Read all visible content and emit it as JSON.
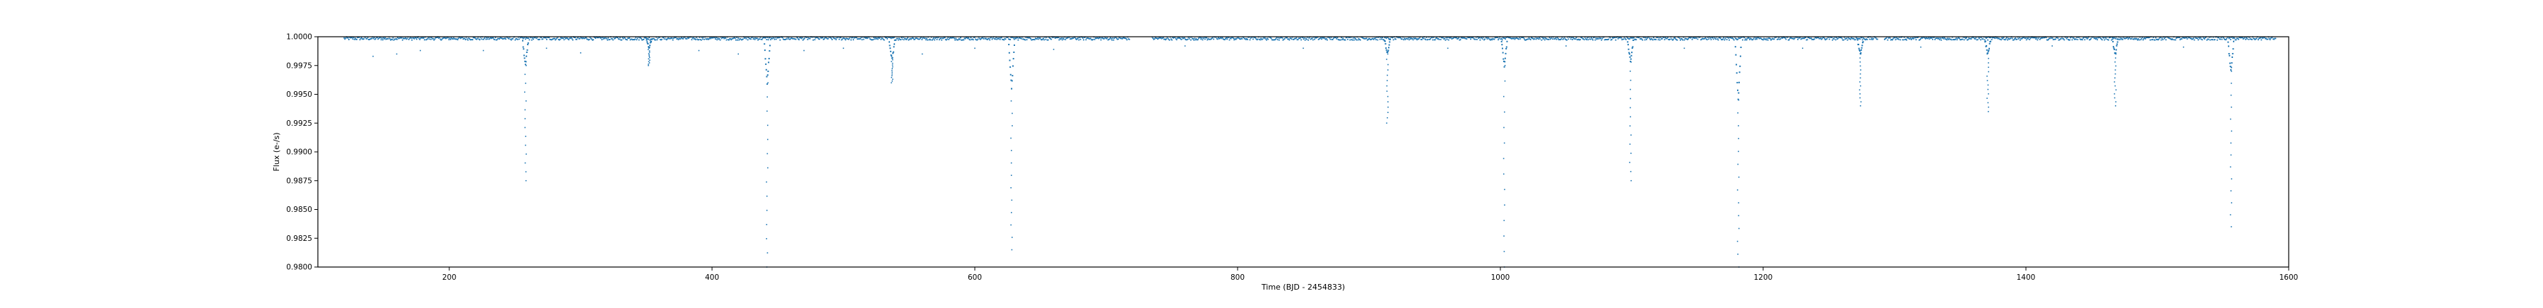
{
  "chart_data": {
    "type": "scatter",
    "title": "",
    "xlabel": "Time (BJD - 2454833)",
    "ylabel": "Flux (e-/s)",
    "xlim": [
      100,
      1600
    ],
    "ylim": [
      0.98,
      1.0
    ],
    "xticks": [
      200,
      400,
      600,
      800,
      1000,
      1200,
      1400,
      1600
    ],
    "xtick_labels": [
      "200",
      "400",
      "600",
      "800",
      "1000",
      "1200",
      "1400",
      "1600"
    ],
    "yticks": [
      0.98,
      0.9825,
      0.985,
      0.9875,
      0.99,
      0.9925,
      0.995,
      0.9975,
      1.0
    ],
    "ytick_labels": [
      "0.9800",
      "0.9825",
      "0.9850",
      "0.9875",
      "0.9900",
      "0.9925",
      "0.9950",
      "0.9975",
      "1.0000"
    ],
    "grid": false,
    "legend": "none",
    "point_color": "#1f77b4",
    "series": [
      {
        "baseline": 0.99985,
        "x_range": [
          120,
          1590
        ],
        "gaps": [
          [
            718,
            735
          ],
          [
            1287,
            1292
          ]
        ],
        "transits": [
          {
            "x": 258,
            "depth": 0.9975,
            "tail": 0.9875
          },
          {
            "x": 352,
            "depth": 0.999,
            "tail": 0.9975
          },
          {
            "x": 442,
            "depth": 0.996,
            "tail": 0.98
          },
          {
            "x": 537,
            "depth": 0.998,
            "tail": 0.996
          },
          {
            "x": 628,
            "depth": 0.9955,
            "tail": 0.9815
          },
          {
            "x": 914,
            "depth": 0.9985,
            "tail": 0.9925
          },
          {
            "x": 1003,
            "depth": 0.9975,
            "tail": 0.98
          },
          {
            "x": 1099,
            "depth": 0.9978,
            "tail": 0.9875
          },
          {
            "x": 1181,
            "depth": 0.9945,
            "tail": 0.98
          },
          {
            "x": 1274,
            "depth": 0.9985,
            "tail": 0.994
          },
          {
            "x": 1371,
            "depth": 0.9985,
            "tail": 0.9935
          },
          {
            "x": 1468,
            "depth": 0.9985,
            "tail": 0.994
          },
          {
            "x": 1556,
            "depth": 0.997,
            "tail": 0.9835
          }
        ],
        "scattered_dips": [
          {
            "x": 142,
            "y": 0.9983
          },
          {
            "x": 160,
            "y": 0.9985
          },
          {
            "x": 178,
            "y": 0.9988
          },
          {
            "x": 226,
            "y": 0.9988
          },
          {
            "x": 274,
            "y": 0.999
          },
          {
            "x": 300,
            "y": 0.9986
          },
          {
            "x": 390,
            "y": 0.9988
          },
          {
            "x": 420,
            "y": 0.9985
          },
          {
            "x": 470,
            "y": 0.9988
          },
          {
            "x": 500,
            "y": 0.999
          },
          {
            "x": 560,
            "y": 0.9985
          },
          {
            "x": 600,
            "y": 0.999
          },
          {
            "x": 660,
            "y": 0.9989
          },
          {
            "x": 760,
            "y": 0.9992
          },
          {
            "x": 850,
            "y": 0.999
          },
          {
            "x": 960,
            "y": 0.999
          },
          {
            "x": 1050,
            "y": 0.9992
          },
          {
            "x": 1140,
            "y": 0.999
          },
          {
            "x": 1230,
            "y": 0.999
          },
          {
            "x": 1320,
            "y": 0.9991
          },
          {
            "x": 1420,
            "y": 0.9992
          },
          {
            "x": 1520,
            "y": 0.9991
          }
        ]
      }
    ]
  }
}
